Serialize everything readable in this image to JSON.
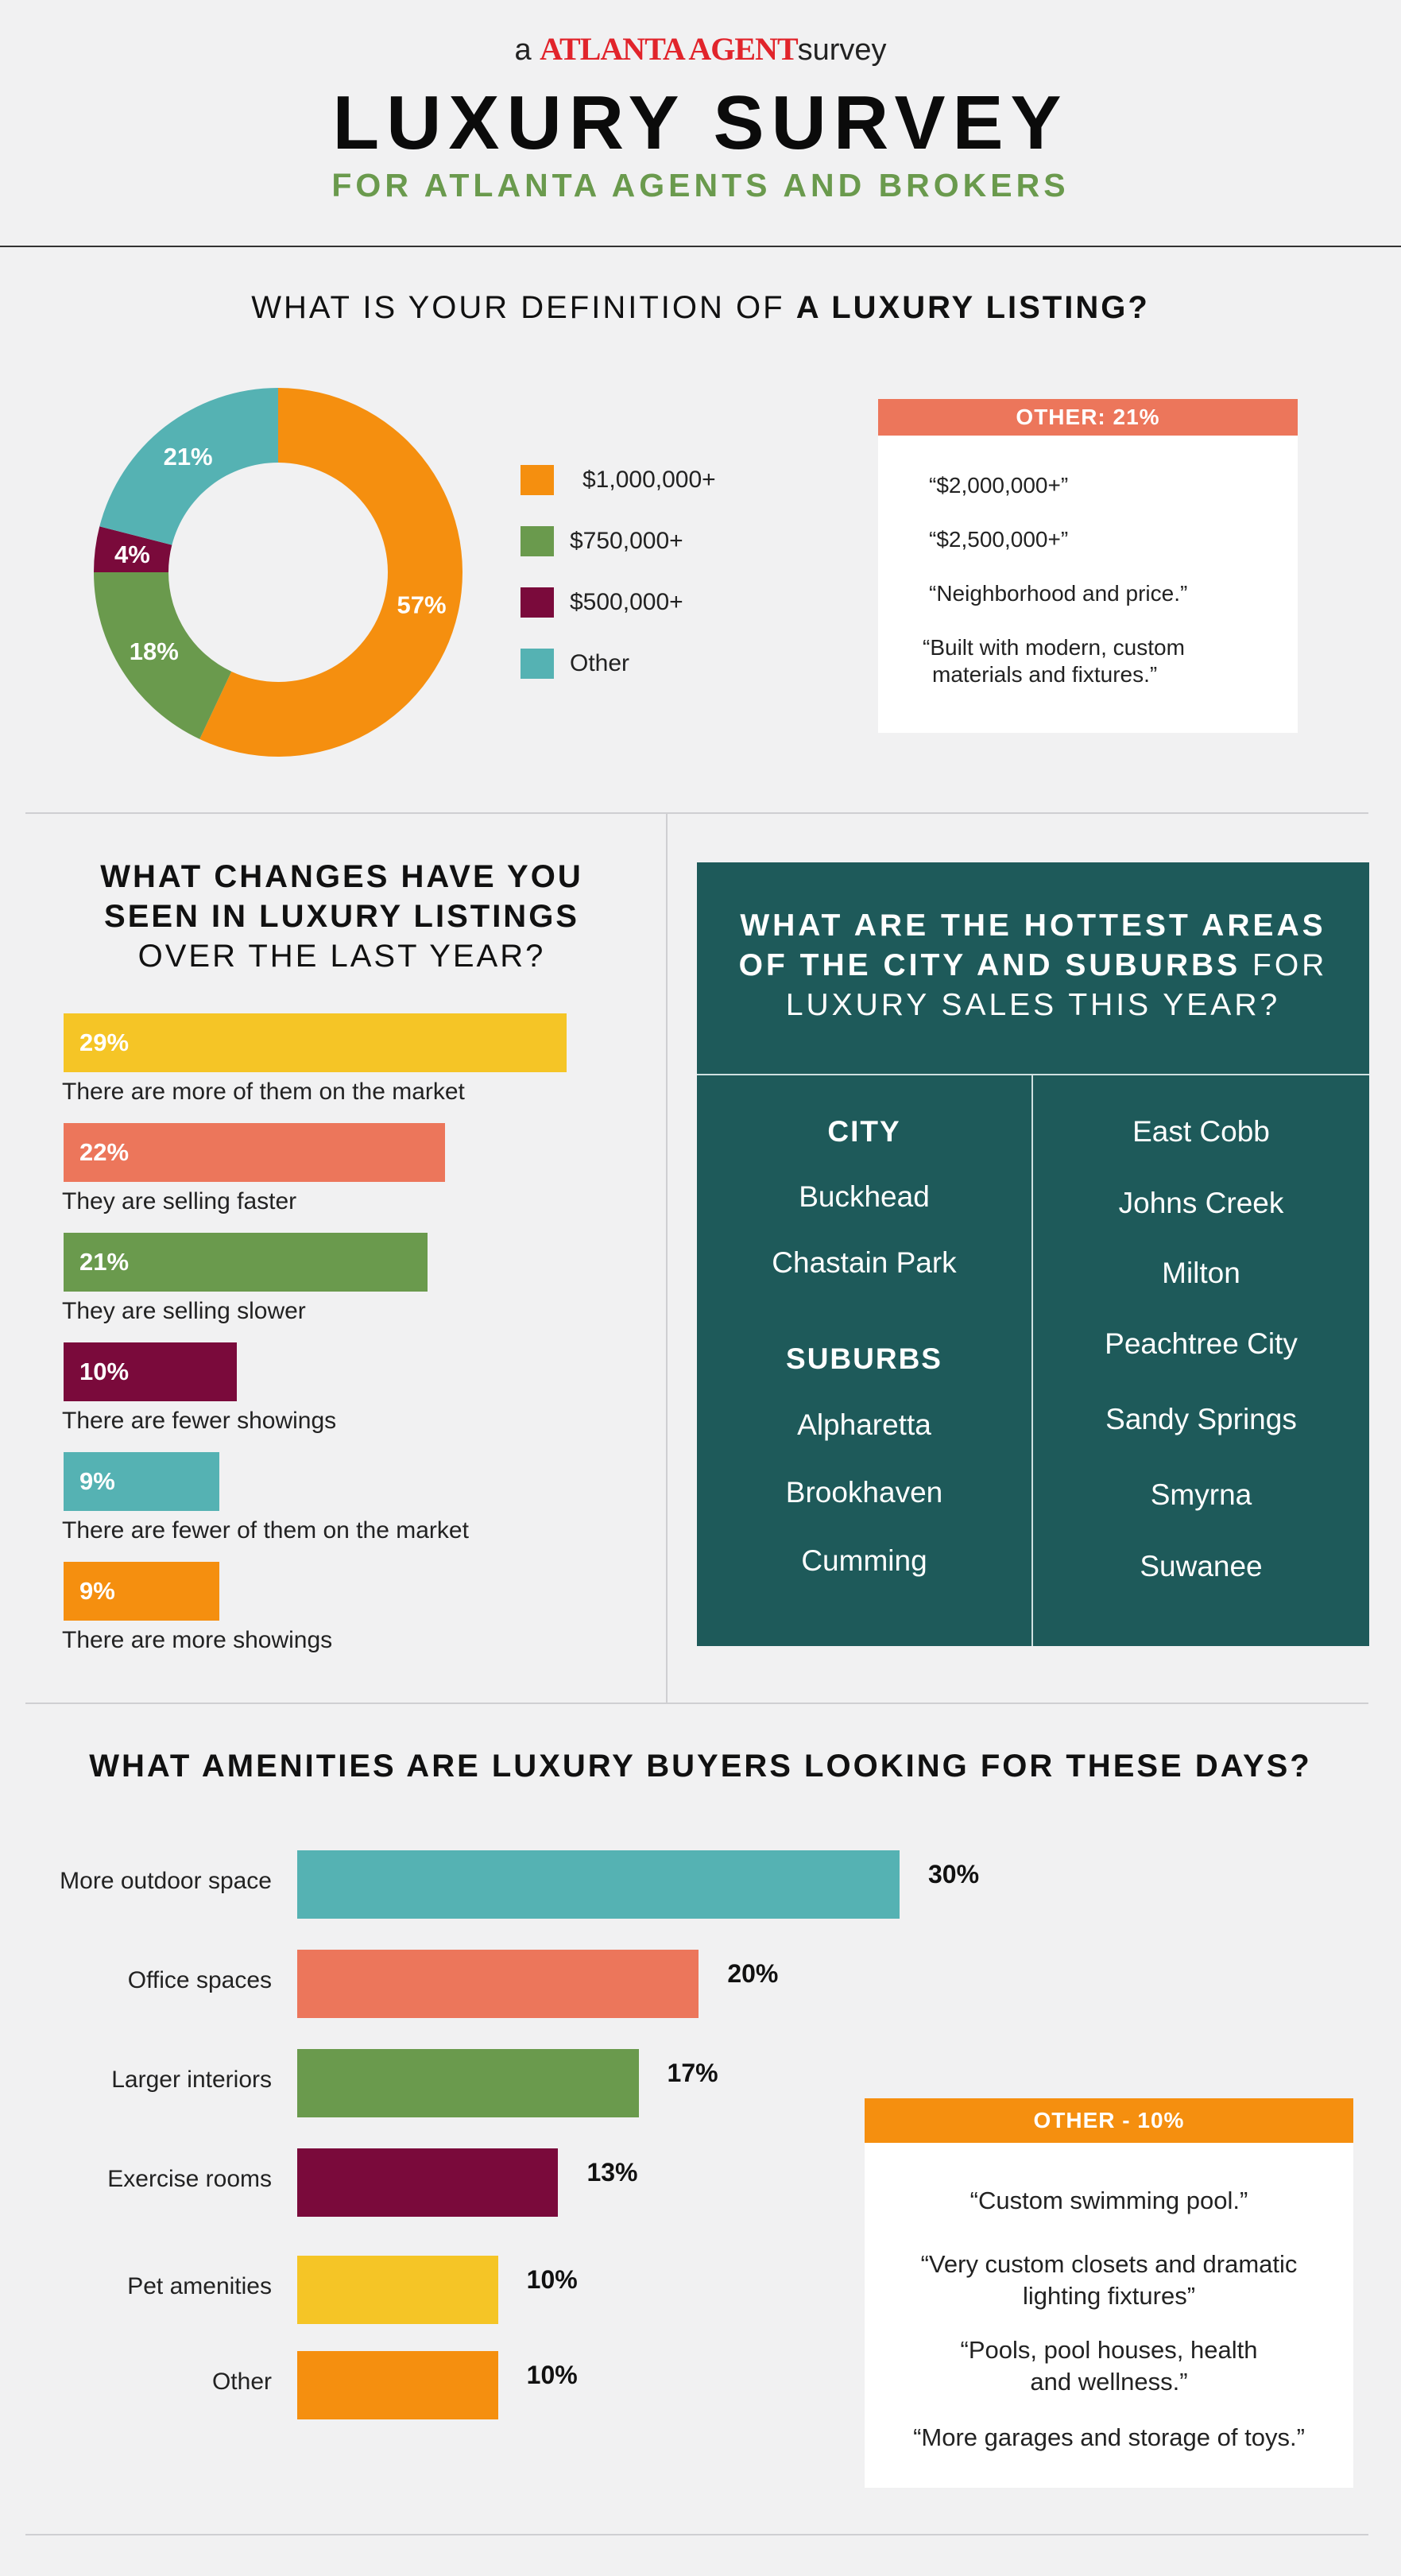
{
  "header": {
    "brand_prefix": "a",
    "brand_name": "ATLANTA AGENT",
    "brand_suffix": "survey",
    "title": "LUXURY SURVEY",
    "subtitle": "FOR ATLANTA AGENTS AND BROKERS"
  },
  "colors": {
    "orange": "#f58f0f",
    "green": "#6a9a4d",
    "maroon": "#7a0a3b",
    "teal": "#55b2b3",
    "salmon": "#ec765b",
    "yellow": "#f5c526",
    "dark_teal": "#1e5a5a"
  },
  "section1": {
    "question_pre": "WHAT IS YOUR DEFINITION OF",
    "question_bold": "A LUXURY LISTING?",
    "other_box": {
      "title": "OTHER: 21%",
      "quotes": [
        "“$2,000,000+”",
        "“$2,500,000+”",
        "“Neighborhood and price.”",
        "“Built with modern, custom",
        "materials and fixtures.”"
      ]
    }
  },
  "section2": {
    "q_line1": "WHAT CHANGES HAVE YOU",
    "q_line2": "SEEN IN LUXURY LISTINGS",
    "q_line3": "OVER THE LAST YEAR?"
  },
  "section3": {
    "q_line1": "WHAT ARE THE HOTTEST AREAS",
    "q_line2_bold": "OF THE CITY AND SUBURBS",
    "q_line2_rest": "FOR",
    "q_line3": "LUXURY SALES THIS YEAR?",
    "city_heading": "CITY",
    "city": [
      "Buckhead",
      "Chastain Park"
    ],
    "suburbs_heading": "SUBURBS",
    "suburbs_left": [
      "Alpharetta",
      "Brookhaven",
      "Cumming"
    ],
    "suburbs_right": [
      "East Cobb",
      "Johns Creek",
      "Milton",
      "Peachtree City",
      "Sandy Springs",
      "Smyrna",
      "Suwanee"
    ]
  },
  "section4": {
    "question": "WHAT AMENITIES ARE LUXURY BUYERS LOOKING FOR THESE DAYS?",
    "other_box": {
      "title": "OTHER - 10%",
      "quotes": [
        "“Custom swimming pool.”",
        "“Very custom closets and dramatic",
        "lighting fixtures”",
        "“Pools, pool houses, health",
        "and wellness.”",
        "“More garages and storage of toys.”"
      ]
    }
  },
  "chart_data": [
    {
      "type": "pie",
      "title": "WHAT IS YOUR DEFINITION OF A LUXURY LISTING?",
      "categories": [
        "$1,000,000+",
        "$750,000+",
        "$500,000+",
        "Other"
      ],
      "values": [
        57,
        18,
        4,
        21
      ],
      "labels": [
        "57%",
        "18%",
        "4%",
        "21%"
      ],
      "colors": [
        "#f58f0f",
        "#6a9a4d",
        "#7a0a3b",
        "#55b2b3"
      ],
      "legend": "right"
    },
    {
      "type": "bar",
      "title": "WHAT CHANGES HAVE YOU SEEN IN LUXURY LISTINGS OVER THE LAST YEAR?",
      "categories": [
        "There are more of them on the market",
        "They are selling faster",
        "They are selling slower",
        "There are fewer showings",
        "There are fewer of them on the market",
        "There are more showings"
      ],
      "values": [
        29,
        22,
        21,
        10,
        9,
        9
      ],
      "labels": [
        "29%",
        "22%",
        "21%",
        "10%",
        "9%",
        "9%"
      ],
      "colors": [
        "#f5c526",
        "#ec765b",
        "#6a9a4d",
        "#7a0a3b",
        "#55b2b3",
        "#f58f0f"
      ]
    },
    {
      "type": "bar",
      "title": "WHAT AMENITIES ARE LUXURY BUYERS LOOKING FOR THESE DAYS?",
      "categories": [
        "More outdoor space",
        "Office spaces",
        "Larger interiors",
        "Exercise rooms",
        "Pet amenities",
        "Other"
      ],
      "values": [
        30,
        20,
        17,
        13,
        10,
        10
      ],
      "labels": [
        "30%",
        "20%",
        "17%",
        "13%",
        "10%",
        "10%"
      ],
      "colors": [
        "#55b2b3",
        "#ec765b",
        "#6a9a4d",
        "#7a0a3b",
        "#f5c526",
        "#f58f0f"
      ]
    }
  ]
}
